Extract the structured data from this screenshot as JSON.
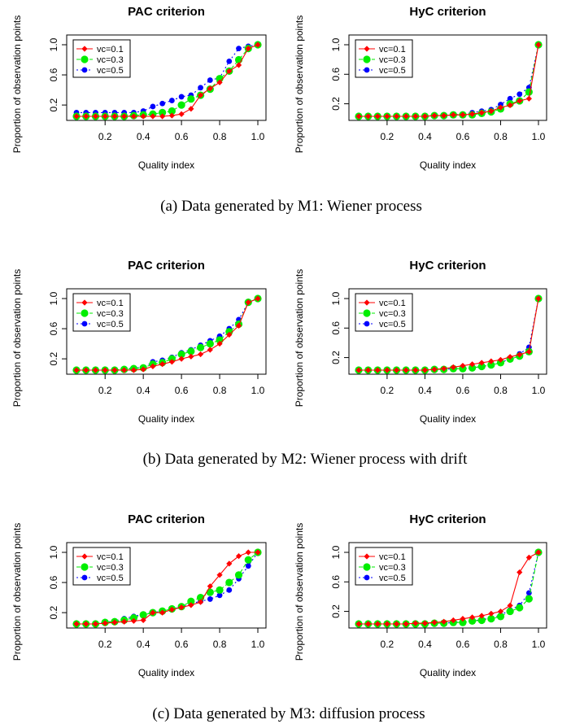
{
  "captions": [
    "(a) Data generated by M1: Wiener process",
    "(b) Data generated by M2: Wiener process with drift",
    "(c) Data generated by M3: diffusion process"
  ],
  "series_colors": {
    "vc=0.1": "#ff0000",
    "vc=0.3": "#00ee00",
    "vc=0.5": "#0000ff"
  },
  "chart_data": [
    {
      "type": "line",
      "title": "PAC criterion",
      "xlabel": "Quality index",
      "ylabel": "Proportion of observation points",
      "x": [
        0.05,
        0.1,
        0.15,
        0.2,
        0.25,
        0.3,
        0.35,
        0.4,
        0.45,
        0.5,
        0.55,
        0.6,
        0.65,
        0.7,
        0.75,
        0.8,
        0.85,
        0.9,
        0.95,
        1.0
      ],
      "xticks": [
        "0.2",
        "0.4",
        "0.6",
        "0.8",
        "1.0"
      ],
      "yticks": [
        "0.2",
        "0.6",
        "1.0"
      ],
      "xlim": [
        0.05,
        1.0
      ],
      "ylim": [
        0.05,
        1.0
      ],
      "legend": "top-left",
      "series": [
        {
          "name": "vc=0.1",
          "values": [
            0.05,
            0.05,
            0.05,
            0.05,
            0.05,
            0.05,
            0.05,
            0.05,
            0.05,
            0.05,
            0.06,
            0.08,
            0.15,
            0.33,
            0.42,
            0.5,
            0.65,
            0.73,
            0.95,
            1.0
          ]
        },
        {
          "name": "vc=0.3",
          "values": [
            0.05,
            0.05,
            0.05,
            0.05,
            0.05,
            0.05,
            0.06,
            0.07,
            0.08,
            0.1,
            0.12,
            0.2,
            0.28,
            0.33,
            0.41,
            0.55,
            0.65,
            0.8,
            0.95,
            1.0
          ]
        },
        {
          "name": "vc=0.5",
          "values": [
            0.1,
            0.1,
            0.1,
            0.1,
            0.1,
            0.1,
            0.1,
            0.12,
            0.18,
            0.22,
            0.26,
            0.31,
            0.33,
            0.43,
            0.53,
            0.56,
            0.78,
            0.95,
            0.98,
            1.0
          ]
        }
      ]
    },
    {
      "type": "line",
      "title": "HyC criterion",
      "xlabel": "Quality index",
      "ylabel": "Proportion of observation points",
      "x": [
        0.05,
        0.1,
        0.15,
        0.2,
        0.25,
        0.3,
        0.35,
        0.4,
        0.45,
        0.5,
        0.55,
        0.6,
        0.65,
        0.7,
        0.75,
        0.8,
        0.85,
        0.9,
        0.95,
        1.0
      ],
      "xticks": [
        "0.2",
        "0.4",
        "0.6",
        "0.8",
        "1.0"
      ],
      "yticks": [
        "0.2",
        "0.6",
        "1.0"
      ],
      "xlim": [
        0.05,
        1.0
      ],
      "ylim": [
        0.03,
        1.0
      ],
      "legend": "top-left",
      "series": [
        {
          "name": "vc=0.1",
          "values": [
            0.03,
            0.03,
            0.03,
            0.03,
            0.03,
            0.03,
            0.03,
            0.03,
            0.04,
            0.04,
            0.05,
            0.05,
            0.06,
            0.08,
            0.1,
            0.15,
            0.18,
            0.24,
            0.27,
            1.0
          ]
        },
        {
          "name": "vc=0.3",
          "values": [
            0.03,
            0.03,
            0.03,
            0.03,
            0.03,
            0.03,
            0.03,
            0.03,
            0.04,
            0.04,
            0.05,
            0.05,
            0.05,
            0.07,
            0.09,
            0.13,
            0.2,
            0.24,
            0.36,
            1.0
          ]
        },
        {
          "name": "vc=0.5",
          "values": [
            0.03,
            0.03,
            0.03,
            0.03,
            0.03,
            0.03,
            0.03,
            0.03,
            0.04,
            0.04,
            0.05,
            0.06,
            0.08,
            0.1,
            0.12,
            0.19,
            0.27,
            0.33,
            0.42,
            1.0
          ]
        }
      ]
    },
    {
      "type": "line",
      "title": "PAC criterion",
      "xlabel": "Quality index",
      "ylabel": "Proportion of observation points",
      "x": [
        0.05,
        0.1,
        0.15,
        0.2,
        0.25,
        0.3,
        0.35,
        0.4,
        0.45,
        0.5,
        0.55,
        0.6,
        0.65,
        0.7,
        0.75,
        0.8,
        0.85,
        0.9,
        0.95,
        1.0
      ],
      "xticks": [
        "0.2",
        "0.4",
        "0.6",
        "0.8",
        "1.0"
      ],
      "yticks": [
        "0.2",
        "0.6",
        "1.0"
      ],
      "xlim": [
        0.05,
        1.0
      ],
      "ylim": [
        0.05,
        1.0
      ],
      "legend": "top-left",
      "series": [
        {
          "name": "vc=0.1",
          "values": [
            0.05,
            0.05,
            0.05,
            0.05,
            0.05,
            0.05,
            0.05,
            0.06,
            0.1,
            0.13,
            0.16,
            0.2,
            0.23,
            0.26,
            0.32,
            0.4,
            0.52,
            0.64,
            0.95,
            1.0
          ]
        },
        {
          "name": "vc=0.3",
          "values": [
            0.05,
            0.05,
            0.05,
            0.05,
            0.05,
            0.06,
            0.07,
            0.08,
            0.13,
            0.15,
            0.2,
            0.26,
            0.3,
            0.35,
            0.4,
            0.45,
            0.56,
            0.66,
            0.95,
            1.0
          ]
        },
        {
          "name": "vc=0.5",
          "values": [
            0.05,
            0.05,
            0.05,
            0.05,
            0.05,
            0.06,
            0.08,
            0.08,
            0.16,
            0.18,
            0.22,
            0.28,
            0.32,
            0.38,
            0.44,
            0.5,
            0.6,
            0.72,
            0.95,
            1.0
          ]
        }
      ]
    },
    {
      "type": "line",
      "title": "HyC criterion",
      "xlabel": "Quality index",
      "ylabel": "Proportion of observation points",
      "x": [
        0.05,
        0.1,
        0.15,
        0.2,
        0.25,
        0.3,
        0.35,
        0.4,
        0.45,
        0.5,
        0.55,
        0.6,
        0.65,
        0.7,
        0.75,
        0.8,
        0.85,
        0.9,
        0.95,
        1.0
      ],
      "xticks": [
        "0.2",
        "0.4",
        "0.6",
        "0.8",
        "1.0"
      ],
      "yticks": [
        "0.2",
        "0.6",
        "1.0"
      ],
      "xlim": [
        0.05,
        1.0
      ],
      "ylim": [
        0.03,
        1.0
      ],
      "legend": "top-left",
      "series": [
        {
          "name": "vc=0.1",
          "values": [
            0.03,
            0.03,
            0.03,
            0.03,
            0.03,
            0.03,
            0.03,
            0.03,
            0.04,
            0.05,
            0.07,
            0.09,
            0.11,
            0.13,
            0.15,
            0.17,
            0.21,
            0.24,
            0.28,
            1.0
          ]
        },
        {
          "name": "vc=0.3",
          "values": [
            0.03,
            0.03,
            0.03,
            0.03,
            0.03,
            0.03,
            0.03,
            0.03,
            0.04,
            0.04,
            0.05,
            0.05,
            0.06,
            0.08,
            0.1,
            0.13,
            0.18,
            0.22,
            0.28,
            1.0
          ]
        },
        {
          "name": "vc=0.5",
          "values": [
            0.03,
            0.03,
            0.03,
            0.03,
            0.03,
            0.03,
            0.03,
            0.03,
            0.04,
            0.04,
            0.05,
            0.05,
            0.06,
            0.08,
            0.1,
            0.13,
            0.19,
            0.25,
            0.34,
            1.0
          ]
        }
      ]
    },
    {
      "type": "line",
      "title": "PAC criterion",
      "xlabel": "Quality index",
      "ylabel": "Proportion of observation points",
      "x": [
        0.05,
        0.1,
        0.15,
        0.2,
        0.25,
        0.3,
        0.35,
        0.4,
        0.45,
        0.5,
        0.55,
        0.6,
        0.65,
        0.7,
        0.75,
        0.8,
        0.85,
        0.9,
        0.95,
        1.0
      ],
      "xticks": [
        "0.2",
        "0.4",
        "0.6",
        "0.8",
        "1.0"
      ],
      "yticks": [
        "0.2",
        "0.6",
        "1.0"
      ],
      "xlim": [
        0.05,
        1.0
      ],
      "ylim": [
        0.05,
        1.0
      ],
      "legend": "top-left",
      "series": [
        {
          "name": "vc=0.1",
          "values": [
            0.05,
            0.05,
            0.05,
            0.06,
            0.07,
            0.08,
            0.09,
            0.1,
            0.2,
            0.2,
            0.24,
            0.27,
            0.3,
            0.34,
            0.55,
            0.7,
            0.85,
            0.95,
            1.0,
            1.0
          ]
        },
        {
          "name": "vc=0.3",
          "values": [
            0.05,
            0.05,
            0.05,
            0.07,
            0.08,
            0.1,
            0.13,
            0.17,
            0.2,
            0.22,
            0.25,
            0.28,
            0.35,
            0.4,
            0.47,
            0.5,
            0.6,
            0.7,
            0.9,
            1.0
          ]
        },
        {
          "name": "vc=0.5",
          "values": [
            0.05,
            0.05,
            0.05,
            0.07,
            0.09,
            0.12,
            0.15,
            0.18,
            0.2,
            0.22,
            0.25,
            0.27,
            0.32,
            0.35,
            0.38,
            0.43,
            0.5,
            0.65,
            0.82,
            1.0
          ]
        }
      ]
    },
    {
      "type": "line",
      "title": "HyC criterion",
      "xlabel": "Quality index",
      "ylabel": "Proportion of observation points",
      "x": [
        0.05,
        0.1,
        0.15,
        0.2,
        0.25,
        0.3,
        0.35,
        0.4,
        0.45,
        0.5,
        0.55,
        0.6,
        0.65,
        0.7,
        0.75,
        0.8,
        0.85,
        0.9,
        0.95,
        1.0
      ],
      "xticks": [
        "0.2",
        "0.4",
        "0.6",
        "0.8",
        "1.0"
      ],
      "yticks": [
        "0.2",
        "0.6",
        "1.0"
      ],
      "xlim": [
        0.05,
        1.0
      ],
      "ylim": [
        0.03,
        1.0
      ],
      "legend": "top-left",
      "series": [
        {
          "name": "vc=0.1",
          "values": [
            0.03,
            0.03,
            0.03,
            0.03,
            0.03,
            0.03,
            0.04,
            0.04,
            0.05,
            0.06,
            0.08,
            0.1,
            0.12,
            0.14,
            0.17,
            0.2,
            0.28,
            0.73,
            0.93,
            1.0
          ]
        },
        {
          "name": "vc=0.3",
          "values": [
            0.03,
            0.03,
            0.03,
            0.03,
            0.03,
            0.03,
            0.03,
            0.03,
            0.04,
            0.04,
            0.05,
            0.05,
            0.07,
            0.08,
            0.1,
            0.13,
            0.2,
            0.25,
            0.37,
            1.0
          ]
        },
        {
          "name": "vc=0.5",
          "values": [
            0.03,
            0.03,
            0.03,
            0.03,
            0.03,
            0.03,
            0.03,
            0.03,
            0.04,
            0.04,
            0.05,
            0.06,
            0.07,
            0.09,
            0.11,
            0.15,
            0.22,
            0.28,
            0.45,
            1.0
          ]
        }
      ]
    }
  ]
}
